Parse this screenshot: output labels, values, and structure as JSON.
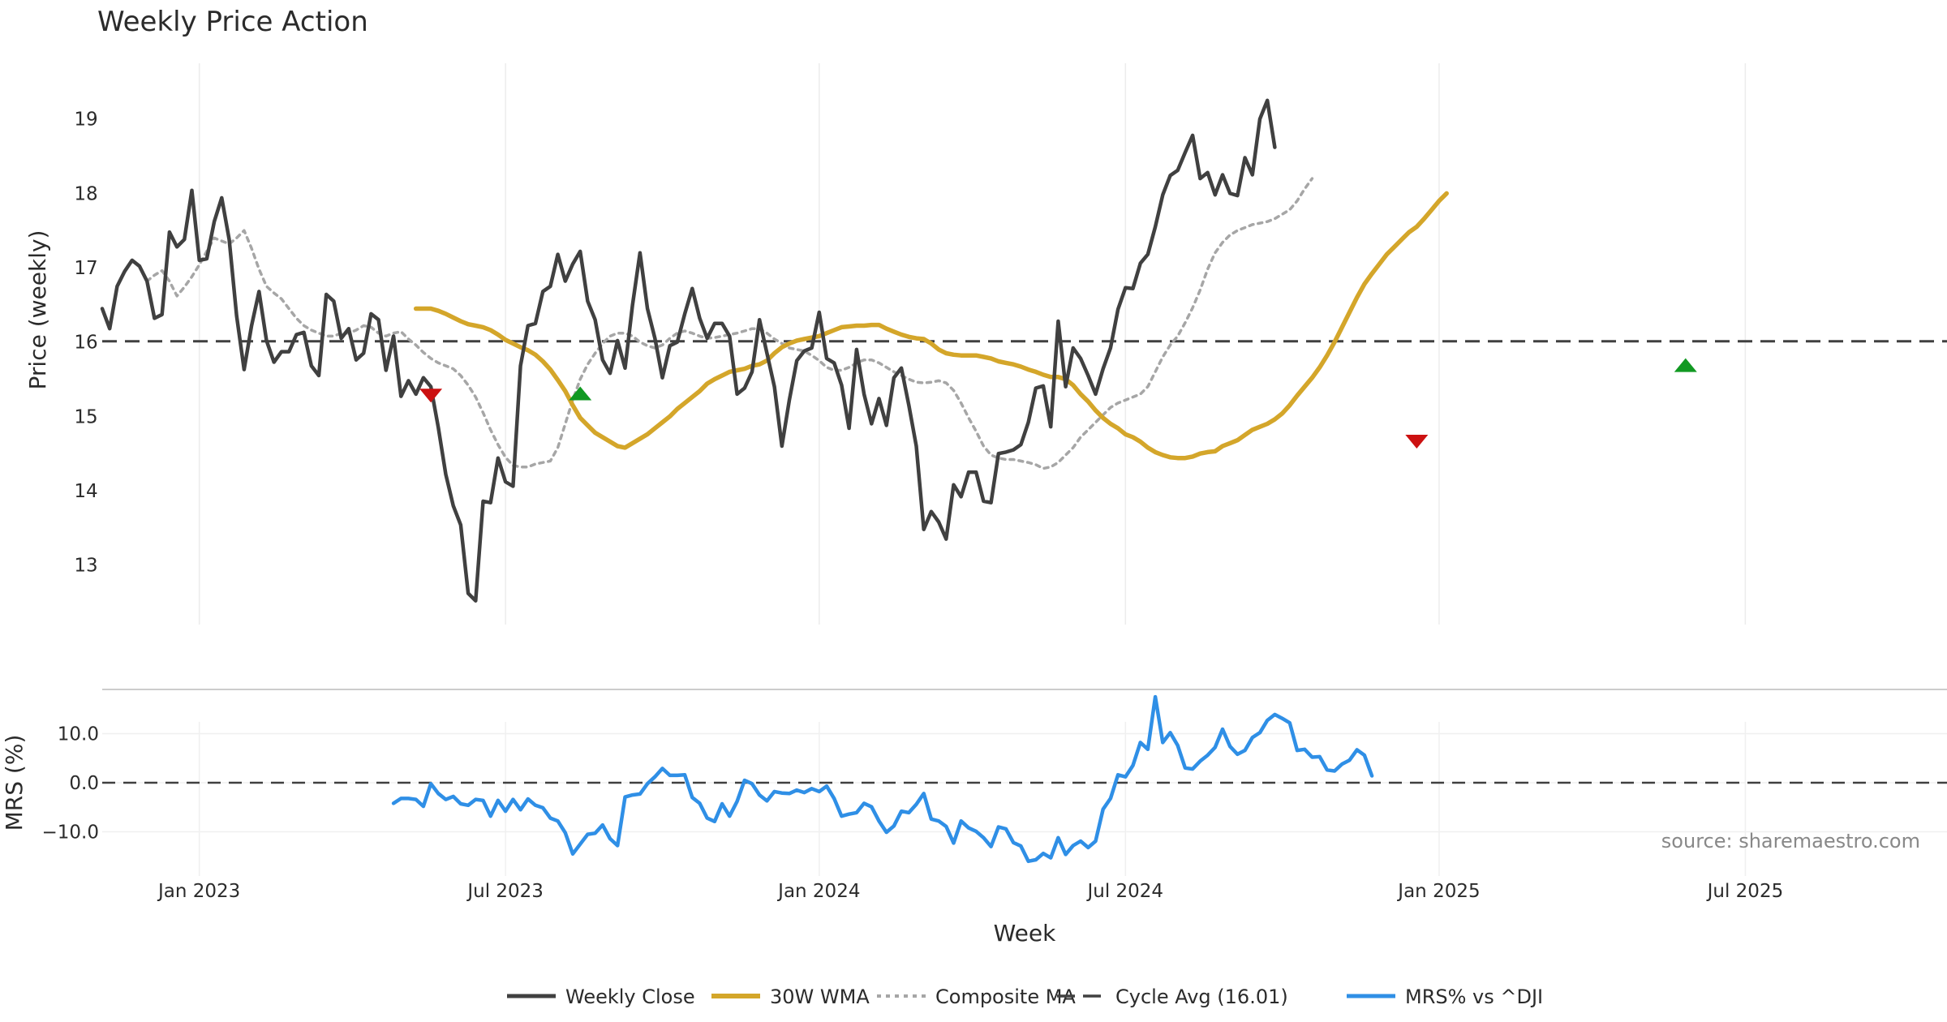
{
  "chart_data": {
    "type": "line",
    "title": "Weekly Price Action",
    "xlabel": "Week",
    "source": "source: sharemaestro.com",
    "x_ticks": [
      {
        "label": "Jan 2023",
        "week": 13
      },
      {
        "label": "Jul 2023",
        "week": 54
      },
      {
        "label": "Jan 2024",
        "week": 96
      },
      {
        "label": "Jul 2024",
        "week": 137
      },
      {
        "label": "Jan 2025",
        "week": 179
      },
      {
        "label": "Jul 2025",
        "week": 220
      }
    ],
    "week_range": [
      0,
      247
    ],
    "price_panel": {
      "ylabel": "Price (weekly)",
      "ylim": [
        12.2,
        19.75
      ],
      "yticks": [
        13,
        14,
        15,
        16,
        17,
        18,
        19
      ],
      "cycle_avg": 16.01,
      "series": [
        {
          "name": "Weekly Close",
          "color": "#404040",
          "style": "solid",
          "start": 0,
          "values": [
            16.45,
            16.18,
            16.75,
            16.95,
            17.1,
            17.02,
            16.82,
            16.32,
            16.37,
            17.48,
            17.28,
            17.38,
            18.04,
            17.1,
            17.12,
            17.62,
            17.94,
            17.38,
            16.35,
            15.63,
            16.22,
            16.68,
            16.02,
            15.73,
            15.87,
            15.87,
            16.1,
            16.13,
            15.68,
            15.55,
            16.64,
            16.55,
            16.05,
            16.18,
            15.76,
            15.85,
            16.38,
            16.3,
            15.62,
            16.08,
            15.27,
            15.48,
            15.3,
            15.52,
            15.4,
            14.85,
            14.22,
            13.8,
            13.54,
            12.62,
            12.52,
            13.86,
            13.84,
            14.44,
            14.12,
            14.06,
            15.68,
            16.22,
            16.25,
            16.68,
            16.75,
            17.18,
            16.82,
            17.05,
            17.22,
            16.55,
            16.3,
            15.76,
            15.58,
            16.02,
            15.65,
            16.5,
            17.2,
            16.45,
            16.05,
            15.52,
            15.95,
            16.0,
            16.38,
            16.72,
            16.32,
            16.05,
            16.25,
            16.25,
            16.08,
            15.3,
            15.38,
            15.6,
            16.3,
            15.85,
            15.4,
            14.6,
            15.22,
            15.75,
            15.88,
            15.92,
            16.4,
            15.78,
            15.72,
            15.42,
            14.84,
            15.9,
            15.3,
            14.9,
            15.24,
            14.88,
            15.52,
            15.65,
            15.15,
            14.6,
            13.48,
            13.72,
            13.58,
            13.35,
            14.08,
            13.92,
            14.25,
            14.25,
            13.86,
            13.84,
            14.5,
            14.52,
            14.55,
            14.62,
            14.92,
            15.38,
            15.41,
            14.86,
            16.28,
            15.4,
            15.92,
            15.78,
            15.55,
            15.3,
            15.64,
            15.92,
            16.44,
            16.73,
            16.72,
            17.06,
            17.18,
            17.55,
            17.98,
            18.24,
            18.31,
            18.55,
            18.78,
            18.2,
            18.28,
            17.98,
            18.25,
            18.0,
            17.97,
            18.48,
            18.25,
            19.0,
            19.25,
            18.62
          ]
        },
        {
          "name": "30W WMA",
          "color": "#d4a62a",
          "style": "solid",
          "start": 42,
          "values": [
            16.45,
            16.45,
            16.45,
            16.42,
            16.38,
            16.33,
            16.28,
            16.24,
            16.22,
            16.2,
            16.16,
            16.1,
            16.03,
            15.98,
            15.93,
            15.89,
            15.83,
            15.74,
            15.63,
            15.49,
            15.34,
            15.15,
            14.98,
            14.88,
            14.78,
            14.72,
            14.66,
            14.6,
            14.58,
            14.64,
            14.7,
            14.76,
            14.84,
            14.92,
            15.0,
            15.1,
            15.18,
            15.26,
            15.34,
            15.44,
            15.5,
            15.55,
            15.6,
            15.62,
            15.64,
            15.68,
            15.7,
            15.75,
            15.85,
            15.93,
            15.98,
            16.02,
            16.04,
            16.06,
            16.08,
            16.12,
            16.16,
            16.2,
            16.21,
            16.22,
            16.22,
            16.23,
            16.23,
            16.18,
            16.14,
            16.1,
            16.07,
            16.05,
            16.04,
            15.98,
            15.9,
            15.85,
            15.83,
            15.82,
            15.82,
            15.82,
            15.8,
            15.78,
            15.74,
            15.72,
            15.7,
            15.67,
            15.63,
            15.6,
            15.56,
            15.53,
            15.53,
            15.5,
            15.42,
            15.3,
            15.2,
            15.08,
            14.98,
            14.9,
            14.84,
            14.76,
            14.72,
            14.66,
            14.58,
            14.52,
            14.48,
            14.45,
            14.44,
            14.44,
            14.46,
            14.5,
            14.52,
            14.53,
            14.6,
            14.64,
            14.68,
            14.75,
            14.82,
            14.86,
            14.9,
            14.96,
            15.04,
            15.15,
            15.28,
            15.4,
            15.52,
            15.66,
            15.82,
            16.0,
            16.2,
            16.4,
            16.6,
            16.78,
            16.92,
            17.05,
            17.18,
            17.28,
            17.38,
            17.48,
            17.55,
            17.66,
            17.78,
            17.9,
            18.0
          ]
        },
        {
          "name": "Composite MA",
          "color": "#a6a6a6",
          "style": "dotted",
          "start": 6,
          "values": [
            16.82,
            16.9,
            16.96,
            16.82,
            16.62,
            16.74,
            16.88,
            17.04,
            17.22,
            17.4,
            17.36,
            17.32,
            17.4,
            17.5,
            17.26,
            16.98,
            16.75,
            16.66,
            16.58,
            16.45,
            16.32,
            16.22,
            16.16,
            16.12,
            16.08,
            16.08,
            16.12,
            16.12,
            16.16,
            16.22,
            16.2,
            16.12,
            16.08,
            16.12,
            16.14,
            16.04,
            15.96,
            15.86,
            15.78,
            15.72,
            15.68,
            15.64,
            15.55,
            15.42,
            15.26,
            15.05,
            14.82,
            14.62,
            14.45,
            14.34,
            14.32,
            14.32,
            14.36,
            14.38,
            14.4,
            14.58,
            14.9,
            15.22,
            15.5,
            15.7,
            15.85,
            15.98,
            16.08,
            16.12,
            16.12,
            16.08,
            16.0,
            15.95,
            15.92,
            15.96,
            16.05,
            16.12,
            16.15,
            16.12,
            16.08,
            16.05,
            16.06,
            16.08,
            16.1,
            16.12,
            16.15,
            16.18,
            16.18,
            16.12,
            16.04,
            15.98,
            15.92,
            15.9,
            15.88,
            15.82,
            15.75,
            15.66,
            15.62,
            15.62,
            15.66,
            15.72,
            15.76,
            15.76,
            15.72,
            15.66,
            15.6,
            15.55,
            15.5,
            15.46,
            15.45,
            15.46,
            15.48,
            15.45,
            15.35,
            15.18,
            14.98,
            14.8,
            14.6,
            14.48,
            14.44,
            14.42,
            14.42,
            14.4,
            14.38,
            14.35,
            14.3,
            14.32,
            14.38,
            14.48,
            14.58,
            14.72,
            14.82,
            14.92,
            15.02,
            15.12,
            15.18,
            15.22,
            15.26,
            15.3,
            15.4,
            15.6,
            15.8,
            15.96,
            16.08,
            16.26,
            16.46,
            16.7,
            16.98,
            17.2,
            17.34,
            17.44,
            17.5,
            17.54,
            17.58,
            17.6,
            17.62,
            17.66,
            17.72,
            17.78,
            17.9,
            18.06,
            18.2
          ]
        }
      ],
      "signals": [
        {
          "type": "sell",
          "week": 44,
          "value": 15.28,
          "color": "#cc1111"
        },
        {
          "type": "buy",
          "week": 64,
          "value": 15.31,
          "color": "#119922"
        },
        {
          "type": "sell",
          "week": 176,
          "value": 14.66,
          "color": "#cc1111"
        },
        {
          "type": "buy",
          "week": 212,
          "value": 15.69,
          "color": "#119922"
        }
      ]
    },
    "mrs_panel": {
      "ylabel": "MRS (%)",
      "ylim": [
        -19,
        19
      ],
      "yticks": [
        10.0,
        0.0,
        -10.0
      ],
      "ytick_labels": [
        "10.0",
        "0.0",
        "−10.0"
      ],
      "zero_line": 0,
      "series": {
        "name": "MRS% vs ^DJI",
        "color": "#2f8fe6",
        "start": 39,
        "values": [
          -4.2,
          -3.2,
          -3.2,
          -3.4,
          -4.8,
          -0.2,
          -2.2,
          -3.4,
          -2.8,
          -4.3,
          -4.6,
          -3.4,
          -3.6,
          -6.8,
          -3.6,
          -5.8,
          -3.4,
          -5.5,
          -3.3,
          -4.6,
          -5.1,
          -7.2,
          -7.8,
          -10.2,
          -14.5,
          -12.5,
          -10.5,
          -10.3,
          -8.6,
          -11.4,
          -12.8,
          -2.9,
          -2.5,
          -2.3,
          -0.2,
          1.2,
          2.9,
          1.5,
          1.5,
          1.6,
          -3.0,
          -4.2,
          -7.2,
          -7.9,
          -4.3,
          -6.8,
          -3.8,
          0.5,
          -0.2,
          -2.5,
          -3.7,
          -1.8,
          -2.1,
          -2.2,
          -1.5,
          -2.0,
          -1.2,
          -1.8,
          -0.7,
          -3.2,
          -6.8,
          -6.4,
          -6.1,
          -4.2,
          -4.9,
          -7.8,
          -10.1,
          -8.8,
          -5.8,
          -6.1,
          -4.4,
          -2.2,
          -7.4,
          -7.8,
          -8.9,
          -12.3,
          -7.8,
          -9.2,
          -9.9,
          -11.2,
          -13.0,
          -9.0,
          -9.4,
          -12.2,
          -12.9,
          -16.0,
          -15.7,
          -14.4,
          -15.3,
          -11.2,
          -14.6,
          -12.8,
          -11.9,
          -13.2,
          -11.9,
          -5.4,
          -3.2,
          1.6,
          1.2,
          3.5,
          8.2,
          6.8,
          17.5,
          8.2,
          10.2,
          7.6,
          3.0,
          2.8,
          4.4,
          5.6,
          7.2,
          10.9,
          7.4,
          5.8,
          6.6,
          9.2,
          10.2,
          12.7,
          13.9,
          13.1,
          12.2,
          6.6,
          6.8,
          5.2,
          5.3,
          2.6,
          2.4,
          3.8,
          4.6,
          6.7,
          5.6,
          1.4
        ]
      }
    },
    "legend": [
      {
        "label": "Weekly Close",
        "color": "#404040",
        "style": "solid"
      },
      {
        "label": "30W WMA",
        "color": "#d4a62a",
        "style": "solid"
      },
      {
        "label": "Composite MA",
        "color": "#a6a6a6",
        "style": "dotted"
      },
      {
        "label": "Cycle Avg (16.01)",
        "color": "#404040",
        "style": "dashed"
      },
      {
        "label": "MRS% vs ^DJI",
        "color": "#2f8fe6",
        "style": "solid"
      }
    ]
  }
}
